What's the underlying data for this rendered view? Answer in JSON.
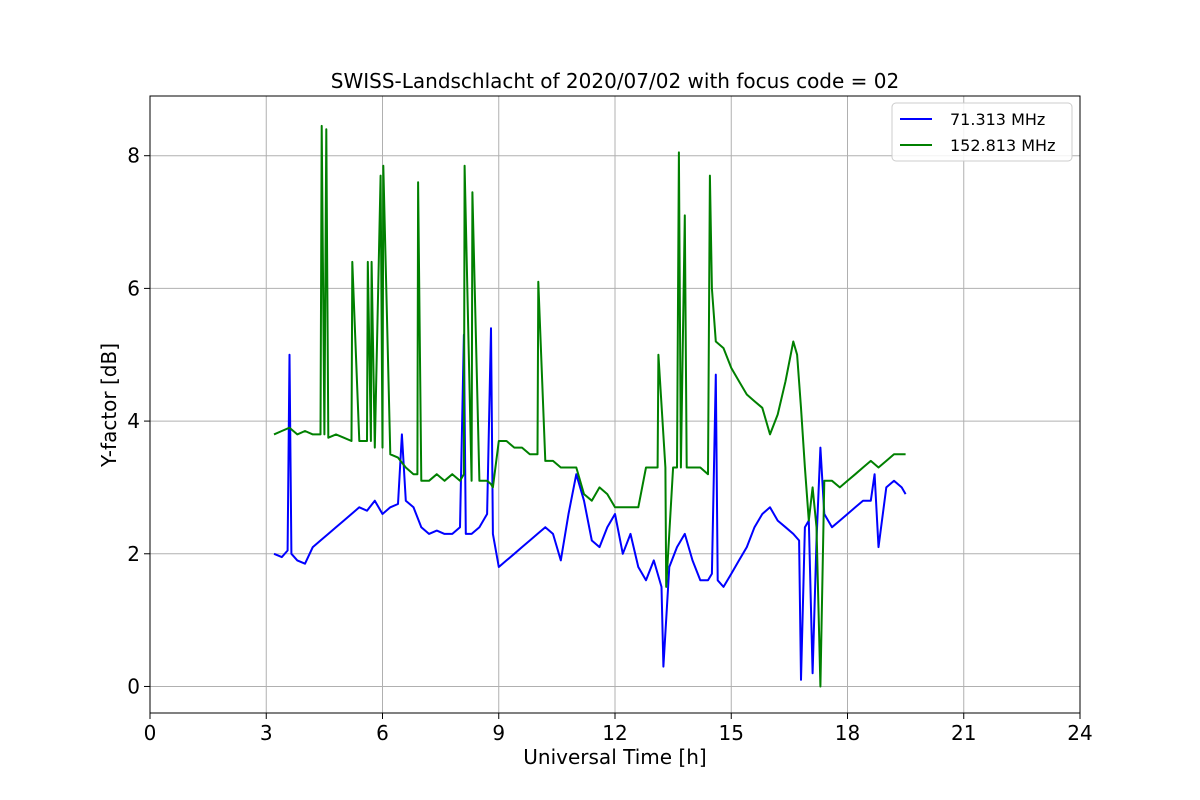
{
  "chart_data": {
    "type": "line",
    "title": "SWISS-Landschlacht of 2020/07/02 with focus code = 02",
    "xlabel": "Universal Time [h]",
    "ylabel": "Y-factor [dB]",
    "xlim": [
      0,
      24
    ],
    "ylim": [
      -0.4,
      8.9
    ],
    "xticks": [
      0,
      3,
      6,
      9,
      12,
      15,
      18,
      21,
      24
    ],
    "yticks": [
      0,
      2,
      4,
      6,
      8
    ],
    "xtick_labels": [
      "0",
      "3",
      "6",
      "9",
      "12",
      "15",
      "18",
      "21",
      "24"
    ],
    "ytick_labels": [
      "0",
      "2",
      "4",
      "6",
      "8"
    ],
    "grid": true,
    "legend": "top-right",
    "series": [
      {
        "name": "71.313 MHz",
        "color": "#0000ff",
        "x": [
          3.2,
          3.4,
          3.55,
          3.6,
          3.65,
          3.8,
          4.0,
          4.2,
          4.4,
          4.6,
          4.8,
          5.0,
          5.2,
          5.4,
          5.6,
          5.8,
          6.0,
          6.2,
          6.4,
          6.5,
          6.6,
          6.8,
          7.0,
          7.2,
          7.4,
          7.6,
          7.8,
          8.0,
          8.1,
          8.15,
          8.3,
          8.5,
          8.7,
          8.8,
          8.85,
          9.0,
          9.2,
          9.4,
          9.6,
          9.8,
          10.0,
          10.2,
          10.4,
          10.6,
          10.8,
          11.0,
          11.2,
          11.4,
          11.6,
          11.8,
          12.0,
          12.2,
          12.4,
          12.6,
          12.8,
          13.0,
          13.2,
          13.25,
          13.4,
          13.6,
          13.8,
          14.0,
          14.2,
          14.4,
          14.5,
          14.6,
          14.65,
          14.8,
          15.0,
          15.2,
          15.4,
          15.6,
          15.8,
          16.0,
          16.2,
          16.4,
          16.6,
          16.75,
          16.8,
          16.9,
          17.0,
          17.1,
          17.2,
          17.3,
          17.4,
          17.6,
          17.8,
          18.0,
          18.2,
          18.4,
          18.6,
          18.7,
          18.8,
          19.0,
          19.2,
          19.4,
          19.5
        ],
        "y": [
          2.0,
          1.95,
          2.05,
          5.0,
          2.0,
          1.9,
          1.85,
          2.1,
          2.2,
          2.3,
          2.4,
          2.5,
          2.6,
          2.7,
          2.65,
          2.8,
          2.6,
          2.7,
          2.75,
          3.8,
          2.8,
          2.7,
          2.4,
          2.3,
          2.35,
          2.3,
          2.3,
          2.4,
          5.3,
          2.3,
          2.3,
          2.4,
          2.6,
          5.4,
          2.3,
          1.8,
          1.9,
          2.0,
          2.1,
          2.2,
          2.3,
          2.4,
          2.3,
          1.9,
          2.6,
          3.2,
          2.8,
          2.2,
          2.1,
          2.4,
          2.6,
          2.0,
          2.3,
          1.8,
          1.6,
          1.9,
          1.5,
          0.3,
          1.8,
          2.1,
          2.3,
          1.9,
          1.6,
          1.6,
          1.7,
          4.7,
          1.6,
          1.5,
          1.7,
          1.9,
          2.1,
          2.4,
          2.6,
          2.7,
          2.5,
          2.4,
          2.3,
          2.2,
          0.1,
          2.4,
          2.5,
          0.2,
          2.2,
          3.6,
          2.6,
          2.4,
          2.5,
          2.6,
          2.7,
          2.8,
          2.8,
          3.2,
          2.1,
          3.0,
          3.1,
          3.0,
          2.9
        ]
      },
      {
        "name": "152.813 MHz",
        "color": "#008000",
        "x": [
          3.2,
          3.4,
          3.6,
          3.8,
          4.0,
          4.2,
          4.4,
          4.43,
          4.5,
          4.55,
          4.6,
          4.8,
          5.0,
          5.2,
          5.22,
          5.4,
          5.6,
          5.62,
          5.7,
          5.72,
          5.8,
          5.95,
          6.0,
          6.02,
          6.2,
          6.4,
          6.6,
          6.8,
          6.9,
          6.92,
          7.0,
          7.2,
          7.4,
          7.6,
          7.8,
          8.0,
          8.1,
          8.12,
          8.3,
          8.32,
          8.5,
          8.7,
          8.8,
          8.85,
          9.0,
          9.2,
          9.4,
          9.6,
          9.8,
          10.0,
          10.02,
          10.2,
          10.4,
          10.6,
          10.8,
          11.0,
          11.2,
          11.4,
          11.6,
          11.8,
          12.0,
          12.2,
          12.4,
          12.6,
          12.8,
          13.0,
          13.1,
          13.12,
          13.3,
          13.32,
          13.5,
          13.6,
          13.65,
          13.7,
          13.8,
          13.85,
          14.0,
          14.2,
          14.4,
          14.45,
          14.5,
          14.6,
          14.8,
          15.0,
          15.2,
          15.4,
          15.6,
          15.8,
          16.0,
          16.2,
          16.4,
          16.6,
          16.7,
          16.8,
          16.9,
          17.0,
          17.1,
          17.2,
          17.3,
          17.4,
          17.6,
          17.8,
          18.0,
          18.2,
          18.4,
          18.6,
          18.8,
          19.0,
          19.2,
          19.4,
          19.5
        ],
        "y": [
          3.8,
          3.85,
          3.9,
          3.8,
          3.85,
          3.8,
          3.8,
          8.45,
          3.8,
          8.4,
          3.75,
          3.8,
          3.75,
          3.7,
          6.4,
          3.7,
          3.7,
          6.4,
          3.7,
          6.4,
          3.6,
          7.7,
          3.6,
          7.85,
          3.5,
          3.45,
          3.3,
          3.2,
          3.2,
          7.6,
          3.1,
          3.1,
          3.2,
          3.1,
          3.2,
          3.1,
          3.2,
          7.85,
          3.1,
          7.45,
          3.1,
          3.1,
          3.05,
          3.0,
          3.7,
          3.7,
          3.6,
          3.6,
          3.5,
          3.5,
          6.1,
          3.4,
          3.4,
          3.3,
          3.3,
          3.3,
          2.9,
          2.8,
          3.0,
          2.9,
          2.7,
          2.7,
          2.7,
          2.7,
          3.3,
          3.3,
          3.3,
          5.0,
          3.3,
          1.5,
          3.3,
          3.3,
          8.05,
          3.3,
          7.1,
          3.3,
          3.3,
          3.3,
          3.2,
          7.7,
          6.0,
          5.2,
          5.1,
          4.8,
          4.6,
          4.4,
          4.3,
          4.2,
          3.8,
          4.1,
          4.6,
          5.2,
          5.0,
          4.2,
          3.3,
          2.5,
          3.0,
          2.4,
          0.0,
          3.1,
          3.1,
          3.0,
          3.1,
          3.2,
          3.3,
          3.4,
          3.3,
          3.4,
          3.5,
          3.5,
          3.5
        ]
      }
    ]
  }
}
